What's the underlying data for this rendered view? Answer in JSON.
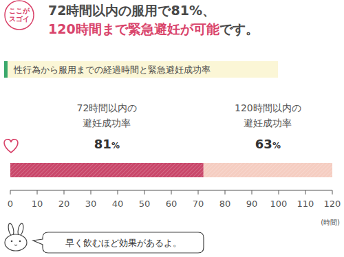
{
  "badge": [
    "ここが",
    "スゴイ"
  ],
  "headline": {
    "line1": "72時間以内の服用で81%、",
    "line2_highlight": "120時間まで緊急避妊が可能",
    "line2_rest": "です。"
  },
  "chart_data": {
    "type": "bar",
    "orientation": "horizontal",
    "stacked": true,
    "title": "性行為から服用までの経過時間と緊急避妊成功率",
    "series": [
      {
        "name": "72時間以内の\n避妊成功率",
        "values": [
          72
        ],
        "color": "#c9476a",
        "rate_label": "81%"
      },
      {
        "name": "120時間以内の\n避妊成功率",
        "values": [
          48
        ],
        "color": "#f5cdc1",
        "rate_label": "63%"
      }
    ],
    "xlim": [
      0,
      120
    ],
    "xticks": [
      0,
      10,
      20,
      30,
      40,
      50,
      60,
      70,
      80,
      90,
      100,
      110,
      120
    ],
    "xlabel": "(時間)",
    "tick_labels": "x",
    "grid": false
  },
  "note": "早く飲むほど効果があるよ。"
}
